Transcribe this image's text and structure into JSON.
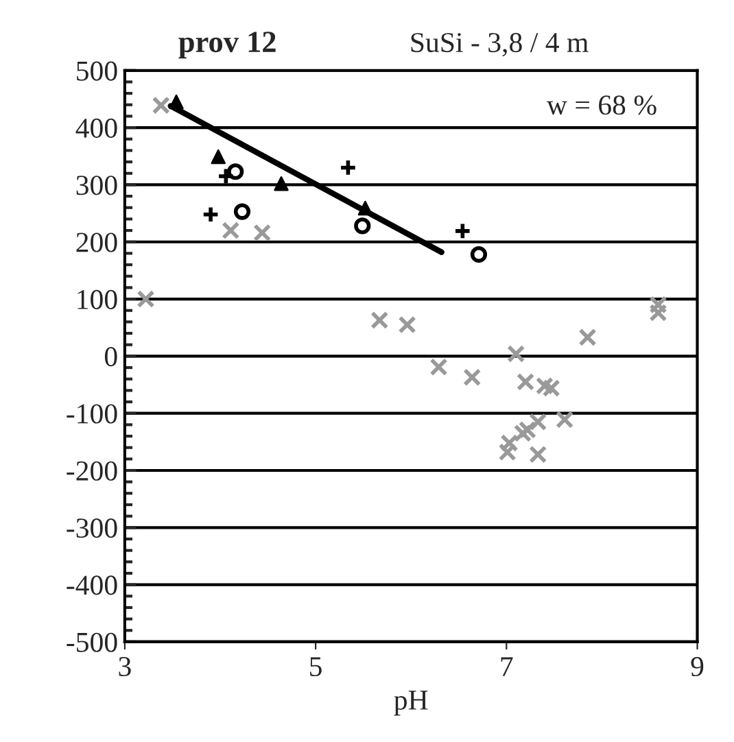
{
  "chart_data": {
    "type": "scatter",
    "title": "prov 12",
    "subtitle": "SuSi - 3,8 / 4 m",
    "xlabel": "pH",
    "annotations": [
      "w = 68 %"
    ],
    "xlim": [
      3,
      9
    ],
    "xticks": [
      3,
      5,
      7,
      9
    ],
    "ylim": [
      -500,
      500
    ],
    "yticks": [
      -500,
      -400,
      -300,
      -200,
      -100,
      0,
      100,
      200,
      300,
      400,
      500
    ],
    "grid": "y",
    "legend": false,
    "series": [
      {
        "marker": "x",
        "color": "#999999",
        "x": [
          3.38,
          3.22,
          4.11,
          4.44,
          5.67,
          5.96,
          6.29,
          6.64,
          7.1,
          7.2,
          7.4,
          7.47,
          7.61,
          7.85,
          8.59,
          8.59,
          7.33,
          7.22,
          7.17,
          7.03,
          7.01,
          7.33
        ],
        "values": [
          439,
          100,
          220,
          216,
          63,
          55,
          -19,
          -37,
          4,
          -45,
          -52,
          -56,
          -111,
          33,
          90,
          76,
          -115,
          -129,
          -135,
          -152,
          -168,
          -172
        ]
      },
      {
        "marker": "triangle",
        "color": "#000000",
        "x": [
          3.54,
          3.98,
          4.64,
          5.52
        ],
        "values": [
          445,
          349,
          302,
          259
        ]
      },
      {
        "marker": "plus",
        "color": "#000000",
        "x": [
          4.06,
          3.9,
          5.34,
          6.54
        ],
        "values": [
          315,
          248,
          330,
          219
        ]
      },
      {
        "marker": "circle",
        "color": "#000000",
        "x": [
          4.16,
          4.23,
          5.49,
          6.71
        ],
        "values": [
          323,
          253,
          228,
          178
        ]
      },
      {
        "type": "line",
        "marker": "none",
        "line_style": "solid",
        "color": "#000000",
        "x": [
          3.48,
          6.32
        ],
        "values": [
          438,
          182
        ]
      }
    ]
  }
}
